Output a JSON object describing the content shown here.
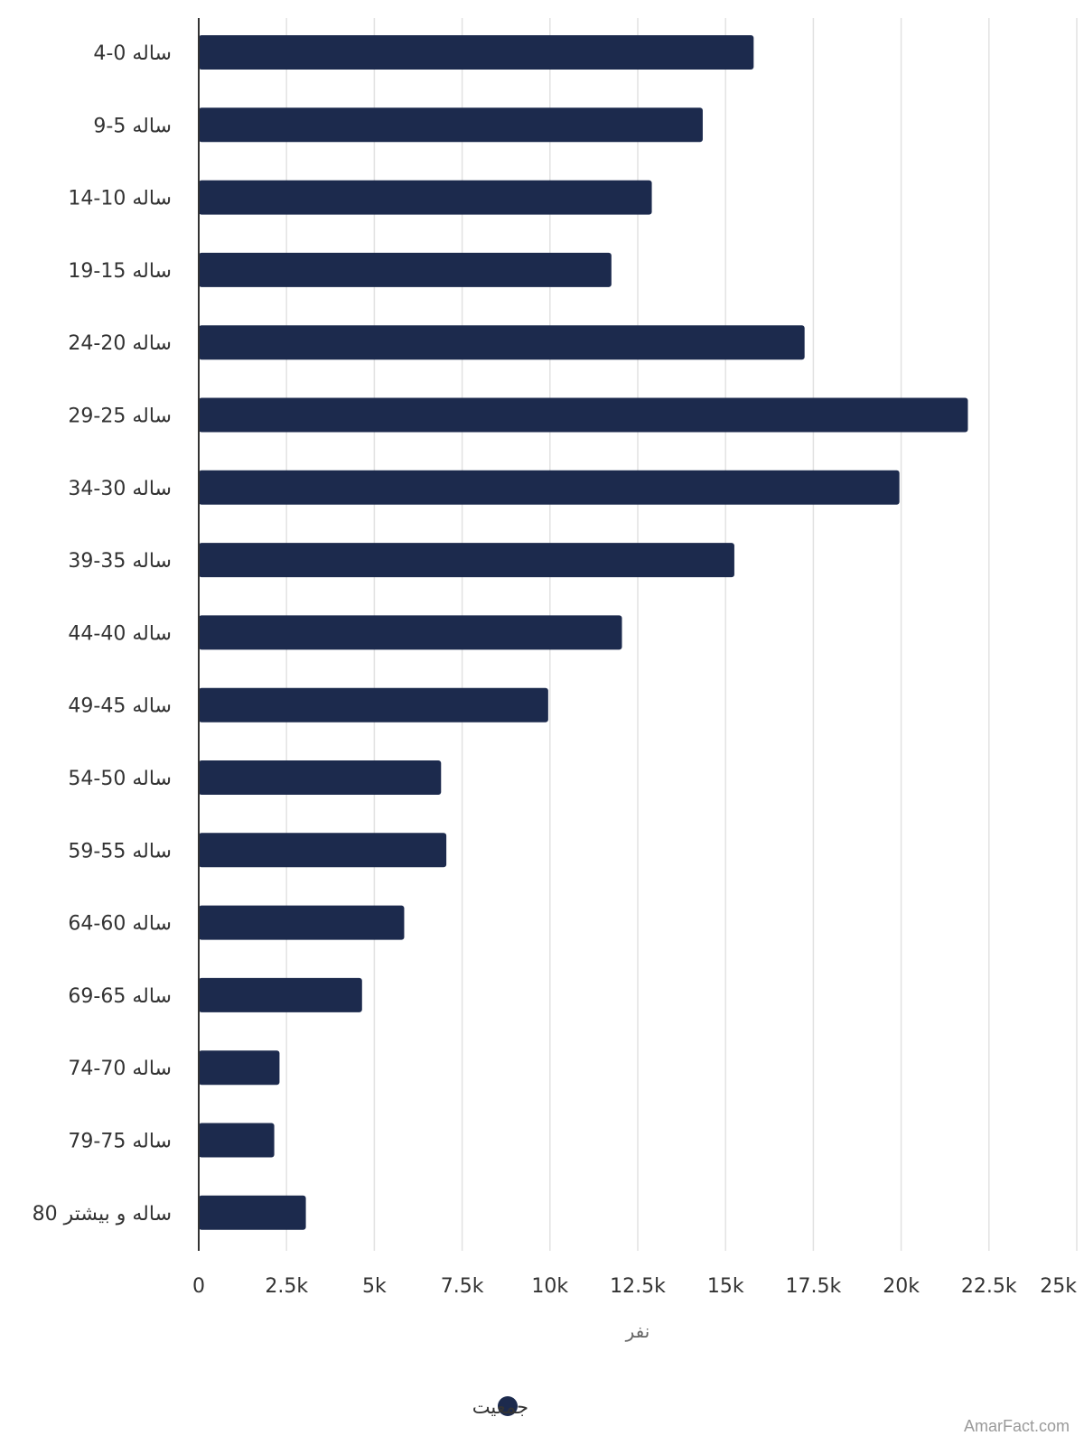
{
  "chart_data": {
    "type": "bar",
    "orientation": "horizontal",
    "categories": [
      "ساله 0-4",
      "ساله 5-9",
      "ساله 10-14",
      "ساله 15-19",
      "ساله 20-24",
      "ساله 25-29",
      "ساله 30-34",
      "ساله 35-39",
      "ساله 40-44",
      "ساله 45-49",
      "ساله 50-54",
      "ساله 55-59",
      "ساله 60-64",
      "ساله 65-69",
      "ساله 70-74",
      "ساله 75-79",
      "ساله و بیشتر 80"
    ],
    "series": [
      {
        "name": "جمعیت",
        "color": "#1c2a4d",
        "values": [
          15800,
          14350,
          12900,
          11750,
          17250,
          21900,
          19950,
          15250,
          12050,
          9950,
          6900,
          7050,
          5850,
          4650,
          2300,
          2150,
          3050
        ]
      }
    ],
    "xlim": [
      0,
      25000
    ],
    "xticks": [
      "0",
      "2.5k",
      "5k",
      "7.5k",
      "10k",
      "12.5k",
      "15k",
      "17.5k",
      "20k",
      "22.5k",
      "25k"
    ],
    "xlabel": "نفر",
    "ylabel": "",
    "title": "",
    "grid": true,
    "legend_position": "bottom-center"
  },
  "watermark": "AmarFact.com"
}
